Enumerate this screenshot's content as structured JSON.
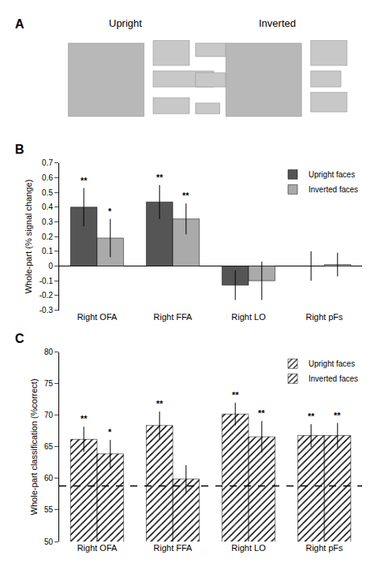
{
  "chart_data": [
    {
      "type": "images",
      "title": "A",
      "annotations": [
        "Upright",
        "Inverted"
      ]
    },
    {
      "type": "bar",
      "title": "B",
      "categories": [
        "Right OFA",
        "Right FFA",
        "Right LO",
        "Right pFs"
      ],
      "series": [
        {
          "name": "Upright faces",
          "color": "#555555",
          "values": [
            0.4,
            0.435,
            -0.13,
            0.0
          ],
          "errors": [
            0.13,
            0.115,
            0.1,
            0.1
          ],
          "annotations": [
            "**",
            "**",
            null,
            null
          ]
        },
        {
          "name": "Inverted faces",
          "color": "#aaaaaa",
          "values": [
            0.19,
            0.32,
            -0.1,
            0.01
          ],
          "errors": [
            0.13,
            0.105,
            0.13,
            0.08
          ],
          "annotations": [
            "*",
            "**",
            null,
            null
          ]
        }
      ],
      "ylabel": "Whole-part (% signal change)",
      "ylim": [
        -0.3,
        0.7
      ],
      "yticks": [
        -0.3,
        -0.2,
        -0.1,
        0.0,
        0.1,
        0.2,
        0.3,
        0.4,
        0.5,
        0.6,
        0.7
      ],
      "grid": false,
      "legend": "upper right"
    },
    {
      "type": "bar",
      "title": "C",
      "categories": [
        "Right OFA",
        "Right FFA",
        "Right LO",
        "Right pFs"
      ],
      "series": [
        {
          "name": "Upright faces",
          "color": "#888888",
          "marker": "hatched",
          "values": [
            66.2,
            68.4,
            70.2,
            66.8
          ],
          "errors": [
            2.0,
            2.2,
            1.8,
            1.8
          ],
          "annotations": [
            "**",
            "**",
            "**",
            "**"
          ]
        },
        {
          "name": "Inverted faces",
          "color": "#dddddd",
          "marker": "hatched",
          "values": [
            63.9,
            59.9,
            66.6,
            66.8
          ],
          "errors": [
            2.2,
            2.2,
            2.5,
            2.0
          ],
          "annotations": [
            "*",
            null,
            "**",
            "**"
          ]
        }
      ],
      "ylabel": "Whole-part classification (%correct)",
      "ylim": [
        50,
        80
      ],
      "yticks": [
        50,
        55,
        60,
        65,
        70,
        75,
        80
      ],
      "reference_line": {
        "value": 58.8,
        "line_style": "dashed"
      },
      "grid": false,
      "legend": "upper right"
    }
  ]
}
